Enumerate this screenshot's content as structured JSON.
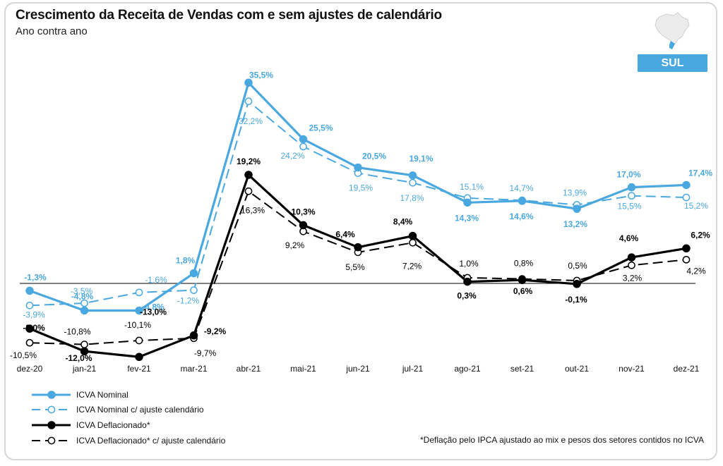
{
  "header": {
    "title": "Crescimento da Receita de Vendas com e sem ajustes de calendário",
    "subtitle": "Ano contra ano"
  },
  "region": {
    "label": "SUL",
    "map_icon": "brazil-map-icon"
  },
  "footnote": "*Deflação pelo IPCA ajustado ao mix e pesos dos setores contidos no ICVA",
  "colors": {
    "blue": "#4aa8e0",
    "black": "#000000",
    "axis": "#000000",
    "badge": "#4aa8e0"
  },
  "chart_data": {
    "type": "line",
    "categories": [
      "dez-20",
      "jan-21",
      "fev-21",
      "mar-21",
      "abr-21",
      "mai-21",
      "jun-21",
      "jul-21",
      "ago-21",
      "set-21",
      "out-21",
      "nov-21",
      "dez-21"
    ],
    "ylim": [
      -15,
      40
    ],
    "series": [
      {
        "name": "ICVA Nominal",
        "color": "#4aa8e0",
        "dashed": false,
        "filled": true,
        "values": [
          -1.3,
          -4.8,
          -4.8,
          1.8,
          35.5,
          25.5,
          20.5,
          19.1,
          14.3,
          14.6,
          13.2,
          17.0,
          17.4
        ],
        "labels": [
          "-1,3%",
          "-4,8%",
          "-4,8%",
          "1,8%",
          "35,5%",
          "25,5%",
          "20,5%",
          "19,1%",
          "14,3%",
          "14,6%",
          "13,2%",
          "17,0%",
          "17,4%"
        ]
      },
      {
        "name": "ICVA Nominal c/ ajuste calendário",
        "color": "#4aa8e0",
        "dashed": true,
        "filled": false,
        "values": [
          -3.9,
          -3.5,
          -1.6,
          -1.2,
          32.2,
          24.2,
          19.5,
          17.8,
          15.1,
          14.7,
          13.9,
          15.5,
          15.2
        ],
        "labels": [
          "-3,9%",
          "-3,5%",
          "-1,6%",
          "-1,2%",
          "32,2%",
          "24,2%",
          "19,5%",
          "17,8%",
          "15,1%",
          "14,7%",
          "13,9%",
          "15,5%",
          "15,2%"
        ]
      },
      {
        "name": "ICVA Deflacionado*",
        "color": "#000000",
        "dashed": false,
        "filled": true,
        "values": [
          -8.0,
          -12.0,
          -13.0,
          -9.2,
          19.2,
          10.3,
          6.4,
          8.4,
          0.3,
          0.6,
          -0.1,
          4.6,
          6.2
        ],
        "labels": [
          "-8,0%",
          "-12,0%",
          "-13,0%",
          "-9,2%",
          "19,2%",
          "10,3%",
          "6,4%",
          "8,4%",
          "0,3%",
          "0,6%",
          "-0,1%",
          "4,6%",
          "6,2%"
        ]
      },
      {
        "name": "ICVA Deflacionado* c/ ajuste calendário",
        "color": "#000000",
        "dashed": true,
        "filled": false,
        "values": [
          -10.5,
          -10.8,
          -10.1,
          -9.7,
          16.3,
          9.2,
          5.5,
          7.2,
          1.0,
          0.8,
          0.5,
          3.2,
          4.2
        ],
        "labels": [
          "-10,5%",
          "-10,8%",
          "-10,1%",
          "-9,7%",
          "16,3%",
          "9,2%",
          "5,5%",
          "7,2%",
          "1,0%",
          "0,8%",
          "0,5%",
          "3,2%",
          "4,2%"
        ]
      }
    ],
    "legend_position": "bottom-left",
    "grid": false
  }
}
